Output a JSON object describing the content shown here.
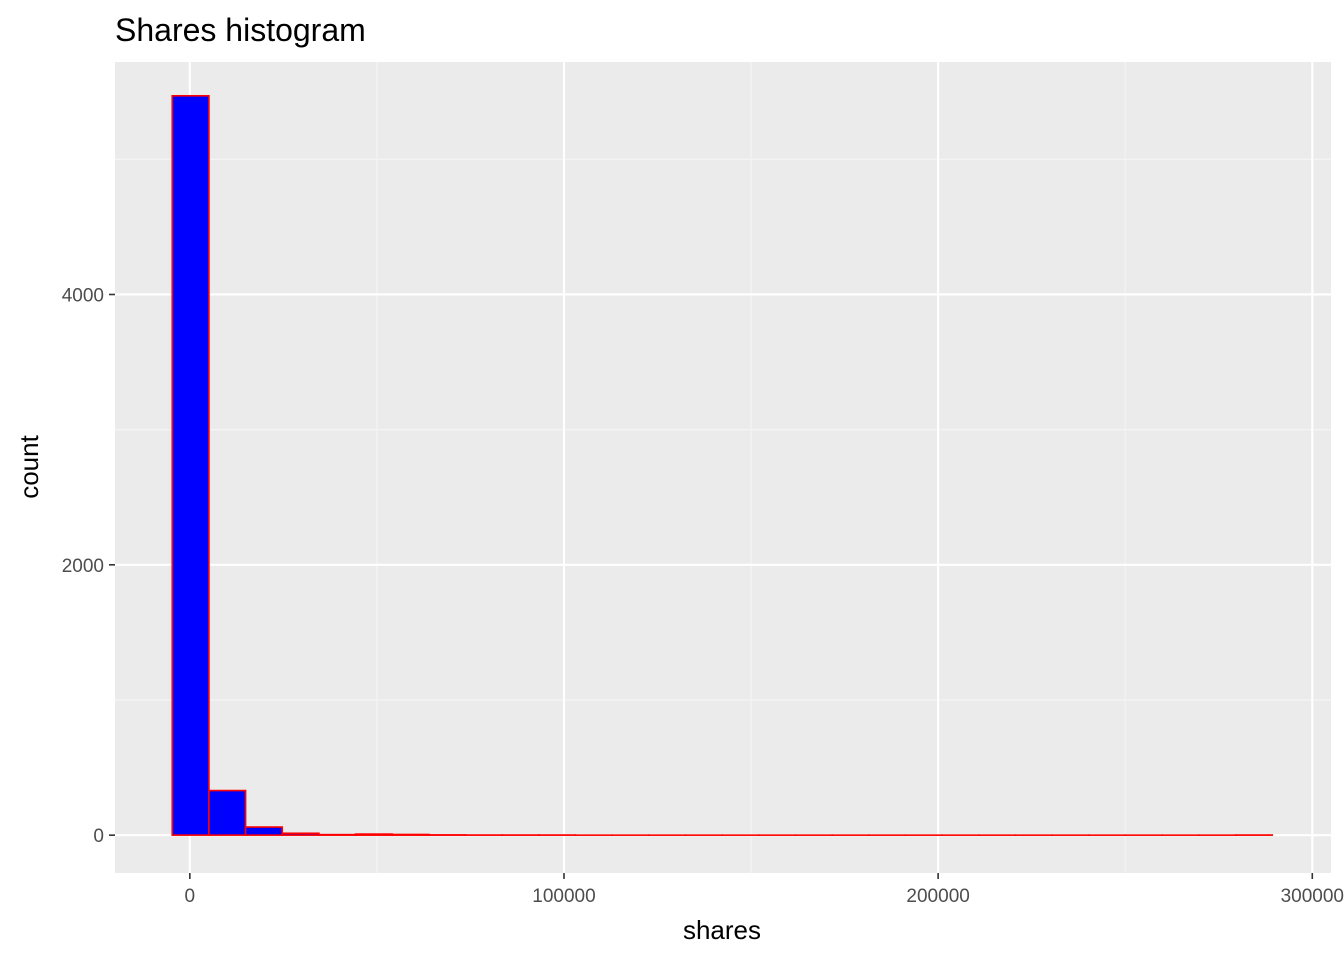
{
  "chart_data": {
    "type": "bar",
    "title": "Shares histogram",
    "xlabel": "shares",
    "ylabel": "count",
    "xlim": [
      -20000,
      305000
    ],
    "ylim": [
      -280,
      5720
    ],
    "x_ticks": [
      {
        "value": 0,
        "label": "0"
      },
      {
        "value": 100000,
        "label": "100000"
      },
      {
        "value": 200000,
        "label": "200000"
      },
      {
        "value": 300000,
        "label": "300000"
      }
    ],
    "y_ticks": [
      {
        "value": 0,
        "label": "0"
      },
      {
        "value": 2000,
        "label": "2000"
      },
      {
        "value": 4000,
        "label": "4000"
      }
    ],
    "x_minor": [
      50000,
      150000,
      250000
    ],
    "y_minor": [
      1000,
      3000,
      5000
    ],
    "grid": true,
    "legend": "none",
    "bins": {
      "start": -4700,
      "width": 9800,
      "counts": [
        5470,
        330,
        60,
        14,
        4,
        8,
        5,
        2,
        1,
        1,
        1,
        0,
        0,
        0,
        0,
        0,
        0,
        0,
        0,
        0,
        0,
        0,
        0,
        0,
        0,
        0,
        0,
        0,
        0,
        1
      ]
    },
    "colors": {
      "bar_fill": "#0000ff",
      "bar_outline": "#ff0000",
      "panel_background": "#ebebeb",
      "grid_major": "#ffffff",
      "grid_minor": "#f5f5f5"
    }
  }
}
